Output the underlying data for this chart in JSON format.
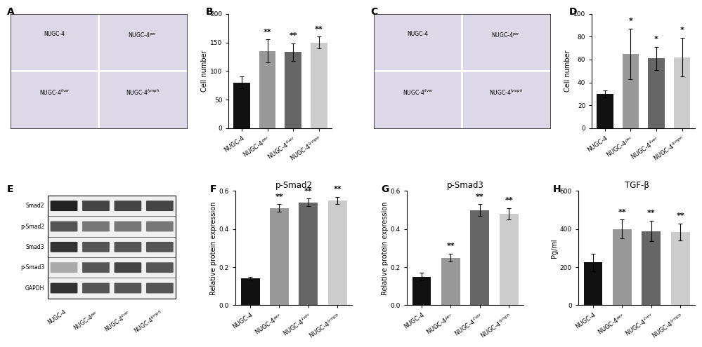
{
  "panel_B": {
    "title": "",
    "ylabel": "Cell number",
    "xlabel_labels": [
      "NUGC-4",
      "NUGC-4per",
      "NUGC-4liver",
      "NUGC-4lymph"
    ],
    "values": [
      80,
      135,
      133,
      150
    ],
    "errors": [
      10,
      20,
      15,
      10
    ],
    "colors": [
      "#111111",
      "#999999",
      "#666666",
      "#cccccc"
    ],
    "ylim": [
      0,
      200
    ],
    "yticks": [
      0,
      50,
      100,
      150,
      200
    ],
    "sig": [
      "",
      "**",
      "**",
      "**"
    ]
  },
  "panel_D": {
    "title": "",
    "ylabel": "Cell number",
    "xlabel_labels": [
      "NUGC-4",
      "NUGC-4per",
      "NUGC-4liver",
      "NUGC-4lymph"
    ],
    "values": [
      30,
      65,
      61,
      62
    ],
    "errors": [
      3,
      22,
      10,
      17
    ],
    "colors": [
      "#111111",
      "#999999",
      "#666666",
      "#cccccc"
    ],
    "ylim": [
      0,
      100
    ],
    "yticks": [
      0,
      20,
      40,
      60,
      80,
      100
    ],
    "sig": [
      "",
      "*",
      "*",
      "*"
    ]
  },
  "panel_F": {
    "title": "p-Smad2",
    "ylabel": "Relative protein expression",
    "xlabel_labels": [
      "NUGC-4",
      "NUGC-4per",
      "NUGC-4liver",
      "NUGC-4lymph"
    ],
    "values": [
      0.14,
      0.51,
      0.54,
      0.55
    ],
    "errors": [
      0.01,
      0.02,
      0.02,
      0.02
    ],
    "colors": [
      "#111111",
      "#999999",
      "#666666",
      "#cccccc"
    ],
    "ylim": [
      0,
      0.6
    ],
    "yticks": [
      0.0,
      0.2,
      0.4,
      0.6
    ],
    "sig": [
      "",
      "**",
      "**",
      "**"
    ]
  },
  "panel_G": {
    "title": "p-Smad3",
    "ylabel": "Relative protein expression",
    "xlabel_labels": [
      "NUGC-4",
      "NUGC-4per",
      "NUGC-4liver",
      "NUGC-4lymph"
    ],
    "values": [
      0.15,
      0.25,
      0.5,
      0.48
    ],
    "errors": [
      0.02,
      0.02,
      0.03,
      0.03
    ],
    "colors": [
      "#111111",
      "#999999",
      "#666666",
      "#cccccc"
    ],
    "ylim": [
      0,
      0.6
    ],
    "yticks": [
      0.0,
      0.2,
      0.4,
      0.6
    ],
    "sig": [
      "",
      "**",
      "**",
      "**"
    ]
  },
  "panel_H": {
    "title": "TGF-β",
    "ylabel": "Pg/ml",
    "xlabel_labels": [
      "NUGC-4",
      "NUGC-4per",
      "NUGC-4liver",
      "NUGC-4lymph"
    ],
    "values": [
      225,
      400,
      390,
      385
    ],
    "errors": [
      45,
      50,
      55,
      45
    ],
    "colors": [
      "#111111",
      "#999999",
      "#666666",
      "#cccccc"
    ],
    "ylim": [
      0,
      600
    ],
    "yticks": [
      0,
      200,
      400,
      600
    ],
    "sig": [
      "",
      "**",
      "**",
      "**"
    ]
  },
  "panel_A_labels": [
    "NUGC-4",
    "NUGC-4per",
    "NUGC-4liver",
    "NUGC-4lymph"
  ],
  "panel_C_labels": [
    "NUGC-4",
    "NUGC-4per",
    "NUGC-4liver",
    "NUGC-4lymph"
  ],
  "panel_E_bands": [
    "Smad2",
    "p-Smad2",
    "Smad3",
    "p-Smad3",
    "GAPDH"
  ],
  "panel_E_xlabels": [
    "NUGC-4",
    "NUGC-4per",
    "NUGC-4liver",
    "NUGC-4lymph"
  ],
  "label_fontsize": 7,
  "tick_fontsize": 6.5,
  "title_fontsize": 8.5,
  "bar_width": 0.65,
  "sig_fontsize": 8,
  "panel_label_fontsize": 10
}
